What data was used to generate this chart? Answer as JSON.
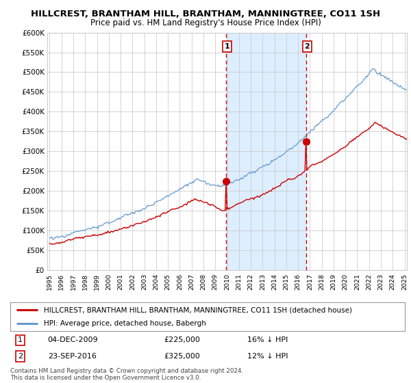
{
  "title": "HILLCREST, BRANTHAM HILL, BRANTHAM, MANNINGTREE, CO11 1SH",
  "subtitle": "Price paid vs. HM Land Registry's House Price Index (HPI)",
  "legend_line1": "HILLCREST, BRANTHAM HILL, BRANTHAM, MANNINGTREE, CO11 1SH (detached house)",
  "legend_line2": "HPI: Average price, detached house, Babergh",
  "annotation1_label": "1",
  "annotation1_date": "04-DEC-2009",
  "annotation1_price": "£225,000",
  "annotation1_hpi": "16% ↓ HPI",
  "annotation2_label": "2",
  "annotation2_date": "23-SEP-2016",
  "annotation2_price": "£325,000",
  "annotation2_hpi": "12% ↓ HPI",
  "footnote1": "Contains HM Land Registry data © Crown copyright and database right 2024.",
  "footnote2": "This data is licensed under the Open Government Licence v3.0.",
  "xmin": 1995,
  "xmax": 2025,
  "ymin": 0,
  "ymax": 600000,
  "red_line_color": "#cc0000",
  "blue_line_color": "#6699cc",
  "shade_color": "#ddeeff",
  "vline_color": "#cc0000",
  "grid_color": "#cccccc",
  "bg_color": "#ffffff",
  "title_fontsize": 9.5,
  "subtitle_fontsize": 8.5
}
